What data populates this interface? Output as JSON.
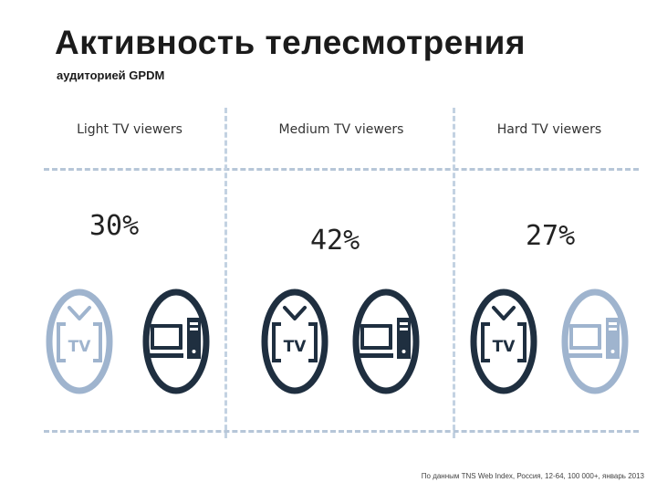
{
  "title": "Активность телесмотрения",
  "subtitle": "аудиторией GPDM",
  "columns": [
    {
      "label": "Light TV viewers",
      "percent": "30%",
      "tv_active": false,
      "pc_active": true
    },
    {
      "label": "Medium TV viewers",
      "percent": "42%",
      "tv_active": true,
      "pc_active": true
    },
    {
      "label": "Hard TV viewers",
      "percent": "27%",
      "tv_active": true,
      "pc_active": false
    }
  ],
  "icon_text": {
    "tv": "TV"
  },
  "source": "По данным TNS Web Index, Россия, 12-64, 100 000+, январь 2013",
  "colors": {
    "active": "#1f2f40",
    "inactive": "#9fb4ce",
    "divider": "#b6c6d8"
  }
}
